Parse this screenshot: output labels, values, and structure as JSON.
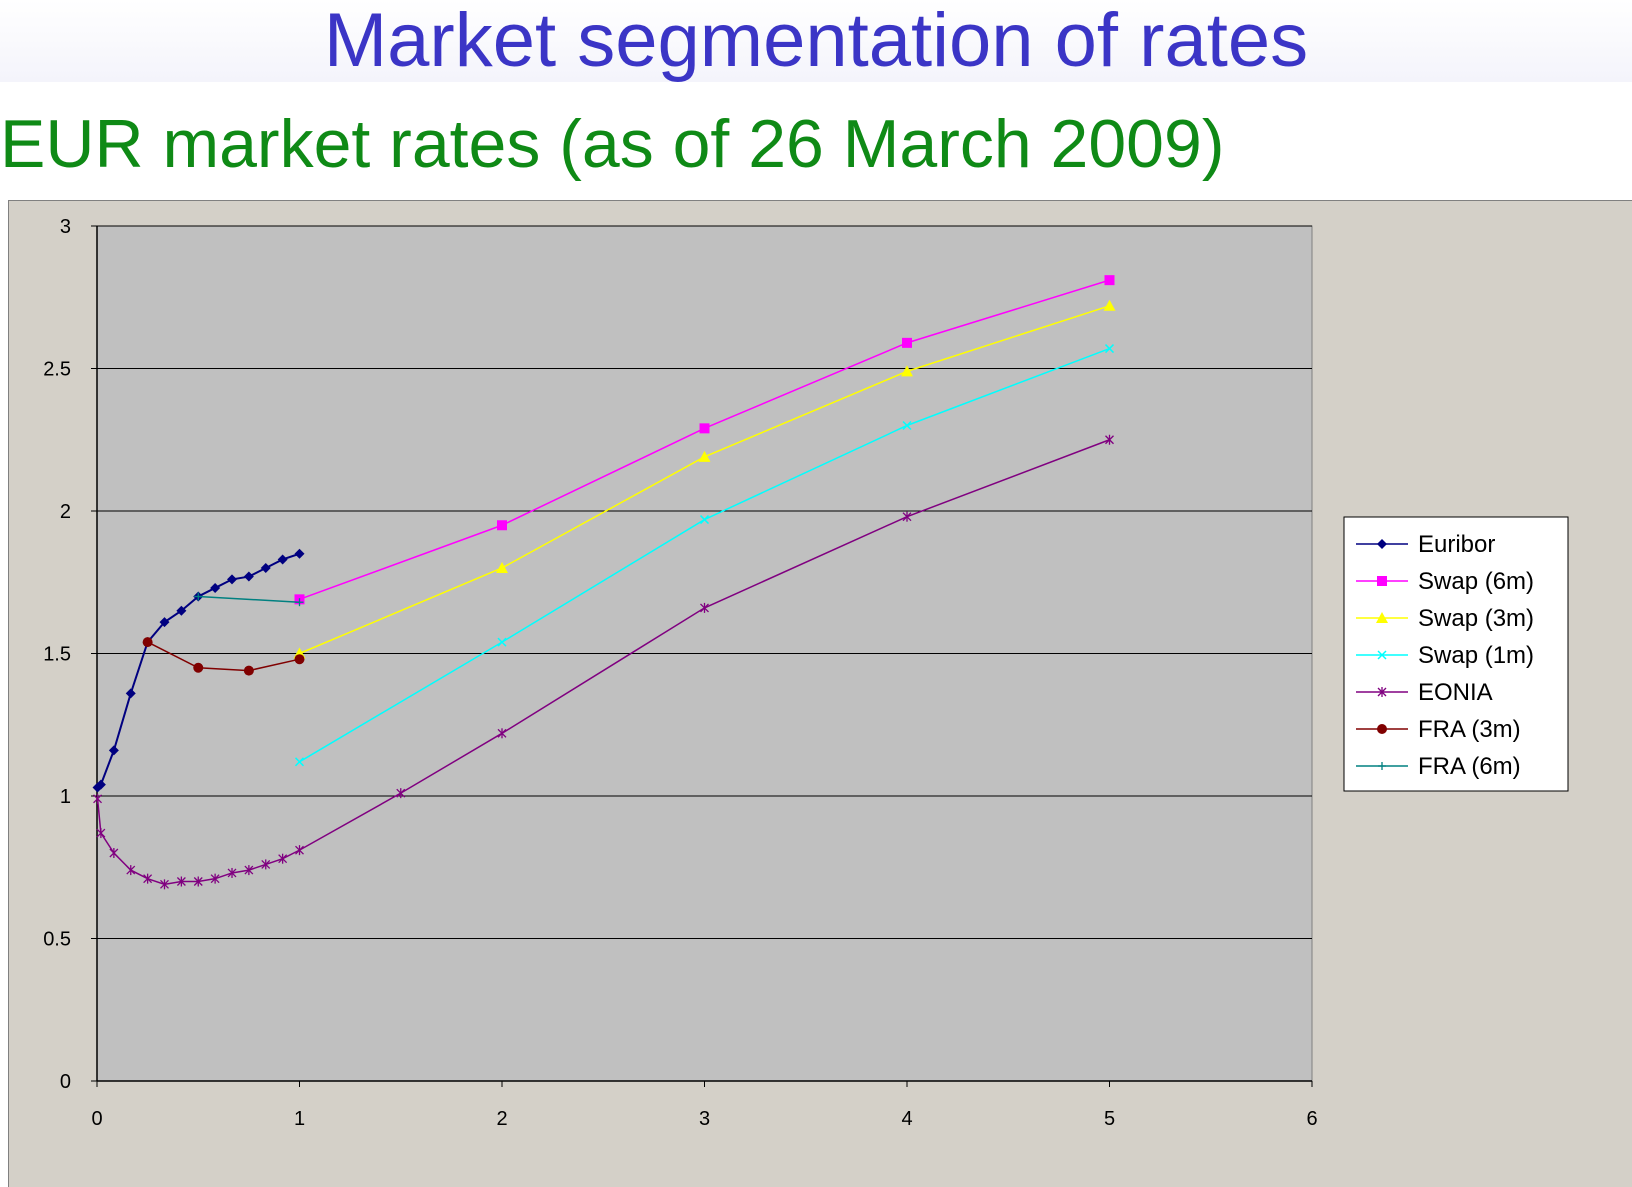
{
  "header": {
    "title": "Market segmentation of rates",
    "subtitle": "EUR market rates (as of 26 March 2009)"
  },
  "colors": {
    "title": "#3b35c6",
    "subtitle": "#0f8a16",
    "plot_background": "#c0c0c0",
    "frame_background": "#d4d0c8"
  },
  "chart_data": {
    "type": "line",
    "title": "",
    "xlabel": "",
    "ylabel": "",
    "xlim": [
      0,
      6
    ],
    "ylim": [
      0,
      3
    ],
    "x_ticks": [
      "0",
      "1",
      "2",
      "3",
      "4",
      "5",
      "6"
    ],
    "y_ticks": [
      "0",
      "0.5",
      "1",
      "1.5",
      "2",
      "2.5",
      "3"
    ],
    "grid": "horizontal",
    "legend_position": "right",
    "series": [
      {
        "name": "Euribor",
        "color": "#000080",
        "marker": "diamond",
        "x": [
          0.0027,
          0.0192,
          0.0833,
          0.1667,
          0.25,
          0.3333,
          0.4167,
          0.5,
          0.5833,
          0.6667,
          0.75,
          0.8333,
          0.9167,
          1.0
        ],
        "y": [
          1.03,
          1.04,
          1.16,
          1.36,
          1.54,
          1.61,
          1.65,
          1.7,
          1.73,
          1.76,
          1.77,
          1.8,
          1.83,
          1.85
        ]
      },
      {
        "name": "Swap (6m)",
        "color": "#ff00ff",
        "marker": "square",
        "x": [
          1,
          2,
          3,
          4,
          5
        ],
        "y": [
          1.69,
          1.95,
          2.29,
          2.59,
          2.81
        ]
      },
      {
        "name": "Swap (3m)",
        "color": "#ffff00",
        "marker": "triangle",
        "x": [
          1,
          2,
          3,
          4,
          5
        ],
        "y": [
          1.5,
          1.8,
          2.19,
          2.49,
          2.72
        ]
      },
      {
        "name": "Swap (1m)",
        "color": "#00ffff",
        "marker": "x",
        "x": [
          1,
          2,
          3,
          4,
          5
        ],
        "y": [
          1.12,
          1.54,
          1.97,
          2.3,
          2.57
        ]
      },
      {
        "name": "EONIA",
        "color": "#800080",
        "marker": "star",
        "x": [
          0.0027,
          0.0192,
          0.0833,
          0.1667,
          0.25,
          0.3333,
          0.4167,
          0.5,
          0.5833,
          0.6667,
          0.75,
          0.8333,
          0.9167,
          1.0,
          1.5,
          2,
          3,
          4,
          5
        ],
        "y": [
          0.99,
          0.87,
          0.8,
          0.74,
          0.71,
          0.69,
          0.7,
          0.7,
          0.71,
          0.73,
          0.74,
          0.76,
          0.78,
          0.81,
          1.01,
          1.22,
          1.66,
          1.98,
          2.25
        ]
      },
      {
        "name": "FRA (3m)",
        "color": "#800000",
        "marker": "circle",
        "x": [
          0.25,
          0.5,
          0.75,
          1.0
        ],
        "y": [
          1.54,
          1.45,
          1.44,
          1.48
        ]
      },
      {
        "name": "FRA (6m)",
        "color": "#008080",
        "marker": "plus",
        "x": [
          0.5,
          1.0
        ],
        "y": [
          1.7,
          1.68
        ]
      }
    ]
  }
}
